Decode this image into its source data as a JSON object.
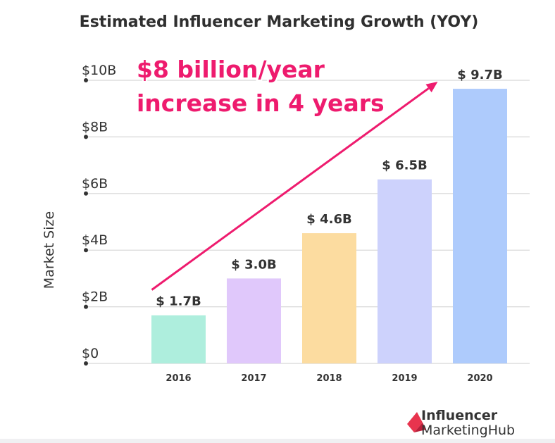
{
  "chart_data": {
    "type": "bar",
    "title": "Estimated Influencer Marketing Growth (YOY)",
    "ylabel": "Market Size",
    "xlabel": "",
    "categories": [
      "2016",
      "2017",
      "2018",
      "2019",
      "2020"
    ],
    "values": [
      1.7,
      3.0,
      4.6,
      6.5,
      9.7
    ],
    "value_labels": [
      "$ 1.7B",
      "$ 3.0B",
      "$ 4.6B",
      "$ 6.5B",
      "$ 9.7B"
    ],
    "ytick_values": [
      0,
      2,
      4,
      6,
      8,
      10
    ],
    "ytick_labels": [
      "$0",
      "$2B",
      "$4B",
      "$6B",
      "$8B",
      "$10B"
    ],
    "ylim": [
      0,
      10
    ],
    "grid": true,
    "colors": [
      "#aeeedd",
      "#e0c8fb",
      "#fcdca0",
      "#cdd2fc",
      "#aecbfc"
    ],
    "annotation": {
      "lines": [
        "$8 billion/year",
        "increase in 4 years"
      ],
      "color": "#ee1b6e",
      "arrow_from": {
        "x": "2016",
        "y": 2.6
      },
      "arrow_to": {
        "x": "2020",
        "y": 10.0
      }
    }
  },
  "logo": {
    "line1": "Influencer",
    "line2_a": "Marketing",
    "line2_b": "Hub",
    "accent_color": "#e8344e"
  }
}
